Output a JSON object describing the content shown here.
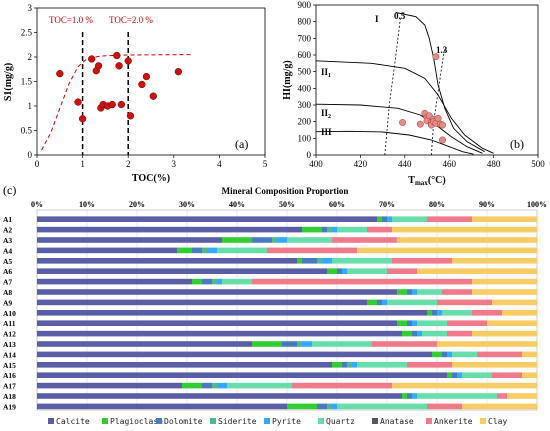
{
  "chart_data": [
    {
      "type": "scatter",
      "panel_label": "(a)",
      "xlabel": "TOC(%)",
      "ylabel": "S1(mg/g)",
      "xlim": [
        0,
        5
      ],
      "ylim": [
        0,
        3
      ],
      "xticks": [
        "0",
        "1",
        "2",
        "3",
        "4",
        "5"
      ],
      "yticks": [
        "0",
        "0.5",
        "1",
        "1.5",
        "2",
        "2.5",
        "3"
      ],
      "annotations": [
        "TOC=1.0 %",
        "TOC=2.0 %"
      ],
      "reference_lines_x": [
        1.0,
        2.0
      ],
      "trend_curve": [
        [
          0.1,
          0.1
        ],
        [
          0.3,
          0.45
        ],
        [
          0.5,
          0.95
        ],
        [
          0.7,
          1.45
        ],
        [
          0.9,
          1.8
        ],
        [
          1.1,
          1.97
        ],
        [
          1.4,
          2.02
        ],
        [
          2.0,
          2.04
        ],
        [
          3.4,
          2.05
        ]
      ],
      "points": [
        {
          "x": 0.5,
          "y": 1.66
        },
        {
          "x": 0.9,
          "y": 1.08
        },
        {
          "x": 1.0,
          "y": 0.74
        },
        {
          "x": 1.2,
          "y": 1.96
        },
        {
          "x": 1.3,
          "y": 1.72
        },
        {
          "x": 1.35,
          "y": 1.82
        },
        {
          "x": 1.4,
          "y": 0.96
        },
        {
          "x": 1.45,
          "y": 1.03
        },
        {
          "x": 1.55,
          "y": 1.0
        },
        {
          "x": 1.65,
          "y": 1.03
        },
        {
          "x": 1.75,
          "y": 2.03
        },
        {
          "x": 1.8,
          "y": 1.82
        },
        {
          "x": 1.85,
          "y": 1.03
        },
        {
          "x": 2.0,
          "y": 1.92
        },
        {
          "x": 2.05,
          "y": 0.8
        },
        {
          "x": 2.3,
          "y": 1.44
        },
        {
          "x": 2.4,
          "y": 1.6
        },
        {
          "x": 2.55,
          "y": 1.2
        },
        {
          "x": 3.1,
          "y": 1.7
        }
      ],
      "marker_color": "#cc1111"
    },
    {
      "type": "scatter",
      "panel_label": "(b)",
      "xlabel_main": "T",
      "xlabel_sub": "max",
      "xlabel_unit": "(°C)",
      "ylabel": "HI(mg/g)",
      "xlim": [
        400,
        500
      ],
      "ylim": [
        0,
        900
      ],
      "xticks": [
        "400",
        "420",
        "440",
        "460",
        "480",
        "500"
      ],
      "yticks": [
        "0",
        "100",
        "200",
        "300",
        "400",
        "500",
        "600",
        "700",
        "800",
        "900"
      ],
      "kerogen_labels": [
        "I",
        "II",
        "II",
        "III"
      ],
      "kerogen_subscripts": [
        "1",
        "2"
      ],
      "ro_labels": [
        "0.5",
        "1.3"
      ],
      "iso_lines": [
        [
          [
            431,
            0
          ],
          [
            433,
            300
          ],
          [
            436,
            600
          ],
          [
            438,
            820
          ]
        ],
        [
          [
            452,
            0
          ],
          [
            453,
            200
          ],
          [
            455,
            380
          ],
          [
            457,
            560
          ],
          [
            458,
            640
          ]
        ]
      ],
      "type_curves": [
        [
          [
            436,
            855
          ],
          [
            445,
            830
          ],
          [
            449,
            780
          ],
          [
            451,
            700
          ],
          [
            453,
            580
          ],
          [
            455,
            420
          ],
          [
            458,
            280
          ],
          [
            462,
            160
          ],
          [
            468,
            80
          ],
          [
            476,
            20
          ]
        ],
        [
          [
            400,
            565
          ],
          [
            425,
            550
          ],
          [
            440,
            520
          ],
          [
            449,
            460
          ],
          [
            455,
            360
          ],
          [
            461,
            220
          ],
          [
            467,
            120
          ],
          [
            475,
            40
          ],
          [
            480,
            10
          ]
        ],
        [
          [
            400,
            305
          ],
          [
            420,
            300
          ],
          [
            437,
            280
          ],
          [
            447,
            240
          ],
          [
            454,
            180
          ],
          [
            461,
            110
          ],
          [
            468,
            50
          ],
          [
            475,
            10
          ]
        ],
        [
          [
            400,
            140
          ],
          [
            415,
            142
          ],
          [
            430,
            138
          ],
          [
            442,
            120
          ],
          [
            452,
            90
          ],
          [
            459,
            55
          ],
          [
            466,
            20
          ],
          [
            471,
            5
          ]
        ]
      ],
      "points": [
        {
          "x": 439,
          "y": 195
        },
        {
          "x": 447,
          "y": 185
        },
        {
          "x": 449,
          "y": 250
        },
        {
          "x": 450,
          "y": 225
        },
        {
          "x": 450,
          "y": 205
        },
        {
          "x": 451,
          "y": 235
        },
        {
          "x": 452,
          "y": 195
        },
        {
          "x": 452,
          "y": 180
        },
        {
          "x": 453,
          "y": 215
        },
        {
          "x": 453,
          "y": 200
        },
        {
          "x": 454,
          "y": 190
        },
        {
          "x": 455,
          "y": 220
        },
        {
          "x": 456,
          "y": 185
        },
        {
          "x": 457,
          "y": 180
        },
        {
          "x": 454,
          "y": 590
        },
        {
          "x": 457,
          "y": 90
        }
      ],
      "marker_color": "#e88a8a"
    },
    {
      "type": "bar",
      "stacked": true,
      "horizontal": true,
      "panel_label": "(c)",
      "title": "Mineral Composition Proportion",
      "xlim": [
        0,
        100
      ],
      "xticks": [
        "0%",
        "10%",
        "20%",
        "30%",
        "40%",
        "50%",
        "60%",
        "70%",
        "80%",
        "90%",
        "100%"
      ],
      "categories": [
        "A1",
        "A2",
        "A3",
        "A4",
        "A5",
        "A6",
        "A7",
        "A8",
        "A9",
        "A10",
        "A11",
        "A12",
        "A13",
        "A14",
        "A15",
        "A16",
        "A17",
        "A18",
        "A19"
      ],
      "series": [
        {
          "name": "Calcite",
          "color": "#5b5ea6",
          "values": [
            68,
            53,
            37,
            28,
            52,
            58,
            31,
            72,
            66,
            78,
            72,
            73,
            43,
            79,
            59,
            82,
            29,
            73,
            50
          ]
        },
        {
          "name": "Plagioclase",
          "color": "#33cc33",
          "values": [
            1,
            4,
            6,
            3,
            1,
            2,
            2,
            2,
            2,
            1,
            2,
            2,
            6,
            2,
            2,
            1,
            4,
            1,
            6
          ]
        },
        {
          "name": "Dolomite",
          "color": "#4a7bbf",
          "values": [
            1,
            1,
            4,
            2,
            3,
            1,
            2,
            1,
            1,
            1,
            1,
            1,
            3,
            1,
            1,
            1,
            2,
            1,
            2
          ]
        },
        {
          "name": "Siderite",
          "color": "#55b88c",
          "values": [
            0,
            1,
            1,
            1,
            1,
            0,
            1,
            0,
            0,
            0,
            0,
            0,
            1,
            0,
            1,
            0,
            1,
            0,
            1
          ]
        },
        {
          "name": "Pyrite",
          "color": "#33aaff",
          "values": [
            1,
            1,
            2,
            2,
            2,
            1,
            1,
            1,
            1,
            1,
            1,
            1,
            2,
            1,
            1,
            1,
            2,
            1,
            1
          ]
        },
        {
          "name": "Quartz",
          "color": "#66ddaa",
          "values": [
            7,
            6,
            9,
            10,
            12,
            8,
            6,
            5,
            10,
            6,
            6,
            5,
            12,
            5,
            10,
            6,
            13,
            16,
            18
          ]
        },
        {
          "name": "Anatase",
          "color": "#555566",
          "values": [
            0,
            0,
            0,
            0,
            0,
            0,
            0,
            0,
            0,
            0,
            0,
            0,
            0,
            0,
            0,
            0,
            0,
            0,
            0
          ]
        },
        {
          "name": "Ankerite",
          "color": "#ee7a8a",
          "values": [
            9,
            5,
            13,
            18,
            12,
            6,
            44,
            6,
            11,
            6,
            8,
            5,
            13,
            9,
            9,
            6,
            20,
            2,
            7
          ]
        },
        {
          "name": "Clay",
          "color": "#f7cc66",
          "values": [
            13,
            29,
            28,
            36,
            17,
            24,
            13,
            13,
            9,
            7,
            10,
            13,
            20,
            3,
            17,
            3,
            29,
            6,
            15
          ]
        }
      ]
    }
  ]
}
